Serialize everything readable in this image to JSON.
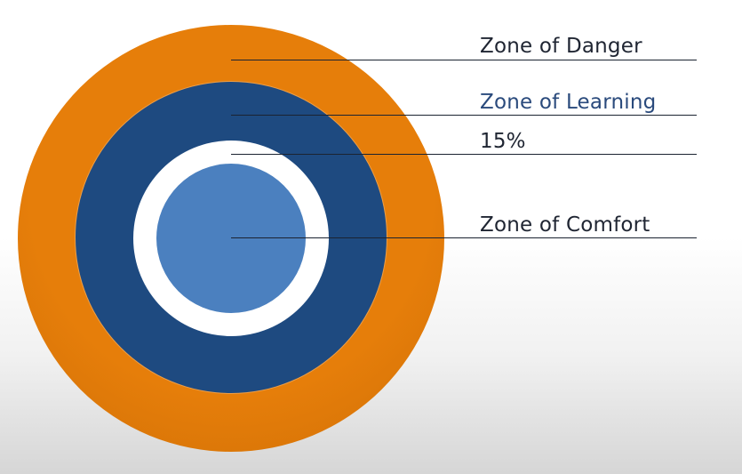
{
  "diagram": {
    "labels": {
      "danger": "Zone of Danger",
      "learning": "Zone of Learning",
      "percent": "15%",
      "comfort": "Zone of Comfort"
    }
  },
  "colors": {
    "danger_ring": "#e67e0a",
    "learning_ring": "#1e4a80",
    "gap_ring": "#ffffff",
    "comfort_core": "#4b80bf",
    "label_dark": "#1f2532",
    "label_blue": "#2a4a7c",
    "leader_line": "#1b2331"
  }
}
